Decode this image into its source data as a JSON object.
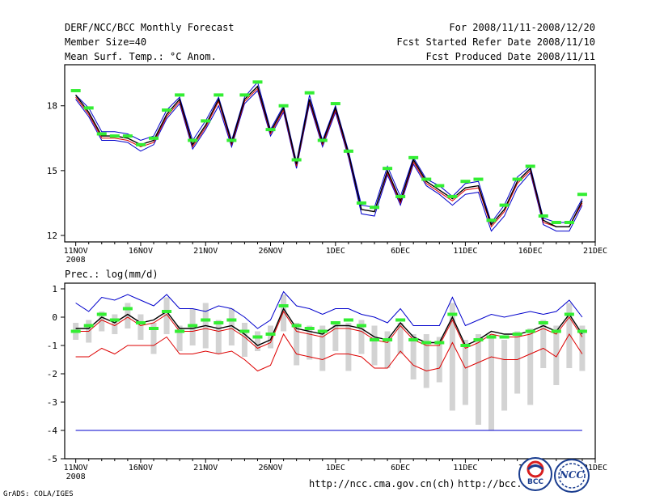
{
  "header": {
    "title": "DERF/NCC/BCC Monthly Forecast",
    "member_size": "Member Size=40",
    "variable": "Mean Surf. Temp.: °C Anom.",
    "period": "For 2008/11/11-2008/12/20",
    "started": "Fcst Started Refer Date 2008/11/10",
    "produced": "Fcst Produced Date 2008/11/11"
  },
  "footer": {
    "grads": "GrADS: COLA/IGES",
    "url1": "http://ncc.cma.gov.cn(ch)",
    "url2": "http://bcc.",
    "logo_bcc": "BCC",
    "logo_ncc": "NCC"
  },
  "colors": {
    "blue": "#0000cc",
    "red": "#dd0000",
    "green": "#33ee33",
    "gray": "#d3d3d3",
    "black": "#000000"
  },
  "chart_data": [
    {
      "type": "line",
      "title": "Mean Surf. Temp.: °C Anom.",
      "xlabel": "",
      "ylabel": "",
      "ylim": [
        11.7,
        19.9
      ],
      "yticks": [
        12,
        15,
        18
      ],
      "x_ticks": [
        {
          "day": 0,
          "label": "11NOV",
          "sub": "2008"
        },
        {
          "day": 5,
          "label": "16NOV"
        },
        {
          "day": 10,
          "label": "21NOV"
        },
        {
          "day": 15,
          "label": "26NOV"
        },
        {
          "day": 20,
          "label": "1DEC"
        },
        {
          "day": 25,
          "label": "6DEC"
        },
        {
          "day": 30,
          "label": "11DEC"
        },
        {
          "day": 35,
          "label": "16DEC"
        },
        {
          "day": 40,
          "label": "21DEC"
        }
      ],
      "series": [
        {
          "name": "upper",
          "color": "blue",
          "values": [
            18.5,
            17.9,
            16.8,
            16.8,
            16.7,
            16.4,
            16.6,
            17.8,
            18.4,
            16.4,
            17.3,
            18.4,
            16.4,
            18.4,
            19.1,
            16.9,
            18.0,
            15.4,
            18.5,
            16.4,
            18.0,
            15.9,
            13.4,
            13.3,
            15.2,
            13.8,
            15.6,
            14.6,
            14.3,
            13.8,
            14.4,
            14.5,
            12.6,
            13.4,
            14.7,
            15.2,
            12.8,
            12.6,
            12.6,
            13.7
          ]
        },
        {
          "name": "ensemble_mean",
          "color": "black",
          "values": [
            18.5,
            17.7,
            16.6,
            16.6,
            16.5,
            16.2,
            16.4,
            17.6,
            18.3,
            16.2,
            17.1,
            18.3,
            16.3,
            18.3,
            18.9,
            16.8,
            17.9,
            15.3,
            18.3,
            16.3,
            17.9,
            15.8,
            13.2,
            13.1,
            15.0,
            13.6,
            15.5,
            14.5,
            14.1,
            13.7,
            14.2,
            14.3,
            12.5,
            13.2,
            14.5,
            15.1,
            12.7,
            12.4,
            12.4,
            13.6
          ]
        },
        {
          "name": "lower",
          "color": "red",
          "values": [
            18.4,
            17.6,
            16.5,
            16.5,
            16.4,
            16.1,
            16.3,
            17.5,
            18.2,
            16.1,
            17.0,
            18.2,
            16.2,
            18.2,
            18.8,
            16.7,
            17.8,
            15.2,
            18.2,
            16.2,
            17.8,
            15.7,
            13.2,
            13.1,
            14.9,
            13.5,
            15.4,
            14.4,
            14.0,
            13.6,
            14.1,
            14.2,
            12.4,
            13.1,
            14.4,
            15.0,
            12.6,
            12.4,
            12.4,
            13.5
          ]
        },
        {
          "name": "lower_blue",
          "color": "blue",
          "values": [
            18.3,
            17.5,
            16.4,
            16.4,
            16.3,
            15.9,
            16.2,
            17.4,
            18.1,
            16.0,
            16.9,
            18.0,
            16.1,
            18.1,
            18.7,
            16.6,
            17.7,
            15.1,
            18.1,
            16.1,
            17.7,
            15.6,
            13.0,
            12.9,
            14.8,
            13.4,
            15.3,
            14.3,
            13.9,
            13.4,
            13.9,
            14.0,
            12.2,
            12.9,
            14.2,
            14.9,
            12.5,
            12.2,
            12.2,
            13.4
          ]
        },
        {
          "name": "green_marks",
          "color": "green",
          "values": [
            18.7,
            17.9,
            16.7,
            16.6,
            16.6,
            16.2,
            16.5,
            17.8,
            18.5,
            16.4,
            17.3,
            18.5,
            16.4,
            18.5,
            19.1,
            16.9,
            18.0,
            15.5,
            18.6,
            16.4,
            18.1,
            15.9,
            13.5,
            13.3,
            15.1,
            13.8,
            15.6,
            14.6,
            14.3,
            13.8,
            14.5,
            14.6,
            12.7,
            13.4,
            14.6,
            15.2,
            12.9,
            12.6,
            12.6,
            13.9
          ]
        }
      ]
    },
    {
      "type": "line",
      "title": "Prec.: log(mm/d)",
      "xlabel": "",
      "ylabel": "",
      "ylim": [
        -5,
        1.2
      ],
      "yticks": [
        -5,
        -4,
        -3,
        -2,
        -1,
        0,
        1
      ],
      "x_ticks": [
        {
          "day": 0,
          "label": "11NOV",
          "sub": "2008"
        },
        {
          "day": 5,
          "label": "16NOV"
        },
        {
          "day": 10,
          "label": "21NOV"
        },
        {
          "day": 15,
          "label": "26NOV"
        },
        {
          "day": 20,
          "label": "1DEC"
        },
        {
          "day": 25,
          "label": "6DEC"
        },
        {
          "day": 30,
          "label": "11DEC"
        },
        {
          "day": 35,
          "label": "16DEC"
        },
        {
          "day": 40,
          "label": "21DEC"
        }
      ],
      "bars": [
        [
          -0.8,
          -0.2
        ],
        [
          -0.9,
          -0.1
        ],
        [
          -0.5,
          0.2
        ],
        [
          -0.6,
          0.1
        ],
        [
          -0.4,
          0.5
        ],
        [
          -0.8,
          0.1
        ],
        [
          -1.3,
          -0.2
        ],
        [
          -0.6,
          0.7
        ],
        [
          -1.2,
          -0.3
        ],
        [
          -1.0,
          0.3
        ],
        [
          -1.1,
          0.5
        ],
        [
          -1.3,
          -0.1
        ],
        [
          -1.0,
          0.3
        ],
        [
          -1.4,
          -0.2
        ],
        [
          -1.2,
          -0.5
        ],
        [
          -1.1,
          -0.3
        ],
        [
          -0.5,
          0.8
        ],
        [
          -1.7,
          -0.2
        ],
        [
          -1.5,
          -0.3
        ],
        [
          -1.9,
          -0.3
        ],
        [
          -1.2,
          -0.2
        ],
        [
          -1.9,
          -0.2
        ],
        [
          -1.3,
          -0.1
        ],
        [
          -1.7,
          -0.3
        ],
        [
          -1.8,
          -0.5
        ],
        [
          -1.3,
          -0.2
        ],
        [
          -2.2,
          -0.6
        ],
        [
          -2.5,
          -0.6
        ],
        [
          -2.3,
          -0.7
        ],
        [
          -3.3,
          0.5
        ],
        [
          -3.1,
          -0.8
        ],
        [
          -3.8,
          -0.6
        ],
        [
          -4.0,
          -0.6
        ],
        [
          -3.3,
          -0.8
        ],
        [
          -2.7,
          -0.5
        ],
        [
          -3.1,
          -0.4
        ],
        [
          -1.8,
          -0.1
        ],
        [
          -2.4,
          -0.3
        ],
        [
          -1.8,
          0.5
        ],
        [
          -1.9,
          -0.3
        ]
      ],
      "series": [
        {
          "name": "upper",
          "color": "blue",
          "values": [
            0.5,
            0.2,
            0.7,
            0.6,
            0.8,
            0.6,
            0.4,
            0.8,
            0.3,
            0.3,
            0.2,
            0.4,
            0.3,
            0.0,
            -0.4,
            -0.1,
            0.9,
            0.4,
            0.3,
            0.1,
            0.3,
            0.3,
            0.1,
            0.0,
            -0.2,
            0.3,
            -0.3,
            -0.3,
            -0.3,
            0.7,
            -0.3,
            -0.1,
            0.1,
            0.0,
            0.1,
            0.2,
            0.1,
            0.2,
            0.6,
            0.0
          ]
        },
        {
          "name": "ensemble_mean",
          "color": "black",
          "values": [
            -0.4,
            -0.4,
            0.0,
            -0.2,
            0.1,
            -0.2,
            -0.1,
            0.2,
            -0.4,
            -0.4,
            -0.3,
            -0.4,
            -0.3,
            -0.6,
            -1.0,
            -0.8,
            0.3,
            -0.4,
            -0.5,
            -0.6,
            -0.3,
            -0.3,
            -0.4,
            -0.7,
            -0.8,
            -0.2,
            -0.7,
            -0.9,
            -0.9,
            0.0,
            -1.0,
            -0.8,
            -0.5,
            -0.6,
            -0.6,
            -0.5,
            -0.3,
            -0.5,
            0.1,
            -0.6
          ]
        },
        {
          "name": "lower",
          "color": "red",
          "values": [
            -1.4,
            -1.4,
            -1.1,
            -1.3,
            -1.0,
            -1.0,
            -1.0,
            -0.7,
            -1.3,
            -1.3,
            -1.2,
            -1.3,
            -1.2,
            -1.5,
            -1.9,
            -1.7,
            -0.6,
            -1.3,
            -1.4,
            -1.5,
            -1.3,
            -1.3,
            -1.4,
            -1.8,
            -1.8,
            -1.2,
            -1.7,
            -1.9,
            -1.8,
            -0.9,
            -1.8,
            -1.6,
            -1.4,
            -1.5,
            -1.5,
            -1.3,
            -1.1,
            -1.4,
            -0.6,
            -1.3
          ]
        },
        {
          "name": "mid_red",
          "color": "red",
          "values": [
            -0.5,
            -0.5,
            -0.1,
            -0.3,
            0.0,
            -0.3,
            -0.2,
            0.1,
            -0.5,
            -0.5,
            -0.4,
            -0.5,
            -0.4,
            -0.7,
            -1.1,
            -0.9,
            0.2,
            -0.5,
            -0.6,
            -0.7,
            -0.4,
            -0.4,
            -0.5,
            -0.8,
            -0.9,
            -0.3,
            -0.8,
            -1.0,
            -1.0,
            -0.1,
            -1.1,
            -0.9,
            -0.6,
            -0.7,
            -0.7,
            -0.6,
            -0.4,
            -0.6,
            0.0,
            -0.7
          ]
        },
        {
          "name": "green_marks",
          "color": "green",
          "values": [
            -0.5,
            -0.3,
            0.1,
            -0.1,
            0.3,
            -0.2,
            -0.4,
            0.2,
            -0.5,
            -0.3,
            -0.1,
            -0.2,
            -0.1,
            -0.5,
            -0.7,
            -0.6,
            0.4,
            -0.3,
            -0.4,
            -0.5,
            -0.2,
            -0.1,
            -0.3,
            -0.8,
            -0.8,
            -0.1,
            -0.8,
            -0.9,
            -0.9,
            0.1,
            -1.0,
            -0.8,
            -0.7,
            -0.7,
            -0.6,
            -0.5,
            -0.2,
            -0.5,
            0.1,
            -0.5
          ]
        },
        {
          "name": "baseline",
          "color": "blue",
          "values": [
            -4.0,
            -4.0,
            -4.0,
            -4.0,
            -4.0,
            -4.0,
            -4.0,
            -4.0,
            -4.0,
            -4.0,
            -4.0,
            -4.0,
            -4.0,
            -4.0,
            -4.0,
            -4.0,
            -4.0,
            -4.0,
            -4.0,
            -4.0,
            -4.0,
            -4.0,
            -4.0,
            -4.0,
            -4.0,
            -4.0,
            -4.0,
            -4.0,
            -4.0,
            -4.0,
            -4.0,
            -4.0,
            -4.0,
            -4.0,
            -4.0,
            -4.0,
            -4.0,
            -4.0,
            -4.0,
            -4.0
          ]
        }
      ]
    }
  ]
}
